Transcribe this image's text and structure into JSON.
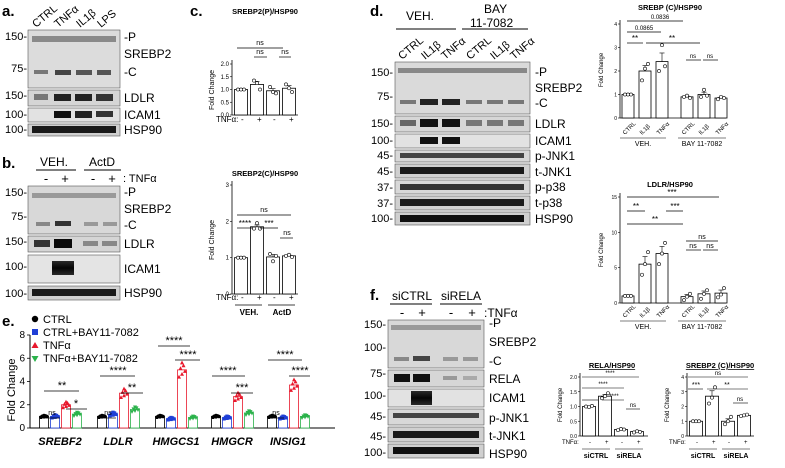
{
  "panels": {
    "a": {
      "letter": "a.",
      "lanes": [
        "CTRL",
        "TNFα",
        "IL1β",
        "LPS"
      ],
      "markers": [
        "150-",
        "75-",
        "150-",
        "100-",
        "100-"
      ],
      "labels": [
        "-P",
        "SREBP2",
        "-C",
        "LDLR",
        "ICAM1",
        "HSP90"
      ]
    },
    "b": {
      "letter": "b.",
      "groups": [
        "VEH.",
        "ActD"
      ],
      "signs": [
        "-",
        "+",
        "-",
        "+"
      ],
      "tnf_label": ": TNFα",
      "markers": [
        "150-",
        "75-",
        "150-",
        "100-",
        "100-"
      ],
      "labels": [
        "-P",
        "SREBP2",
        "-C",
        "LDLR",
        "ICAM1",
        "HSP90"
      ]
    },
    "c": {
      "letter": "c.",
      "xrow_label": "TNFα:",
      "signs": [
        "-",
        "+",
        "-",
        "+"
      ],
      "groups": [
        "VEH.",
        "ActD"
      ],
      "sig_top": [
        "ns",
        "ns",
        "ns"
      ],
      "sig_bottom": [
        "ns",
        "****",
        "***",
        "ns"
      ]
    },
    "d": {
      "letter": "d.",
      "groups": [
        "VEH.",
        "BAY",
        "11-7082"
      ],
      "lanes": [
        "CTRL",
        "IL1β",
        "TNFα",
        "CTRL",
        "IL1β",
        "TNFα"
      ],
      "markers": [
        "150-",
        "75-",
        "150-",
        "100-",
        "45-",
        "45-",
        "37-",
        "37-",
        "100-"
      ],
      "labels": [
        "-P",
        "SREBP2",
        "-C",
        "LDLR",
        "ICAM1",
        "p-JNK1",
        "t-JNK1",
        "p-p38",
        "t-p38",
        "HSP90"
      ],
      "sig_top": [
        "0.0836",
        "0.0865",
        "**",
        "**",
        "ns",
        "ns"
      ],
      "sig_bottom": [
        "***",
        "**",
        "***",
        "**",
        "ns",
        "ns",
        "ns"
      ],
      "xcats": [
        "CTRL",
        "IL1β",
        "TNFα",
        "CTRL",
        "IL1β",
        "TNFα"
      ],
      "xgroups": [
        "VEH.",
        "BAY 11-7082"
      ]
    },
    "e": {
      "letter": "e.",
      "legend": [
        "CTRL",
        "CTRL+BAY11-7082",
        "TNFα",
        "TNFα+BAY11-7082"
      ],
      "sig": [
        "ns",
        "**",
        "*",
        "ns",
        "****",
        "**",
        "****",
        "****",
        "****",
        "***",
        "ns",
        "****",
        "****"
      ]
    },
    "f": {
      "letter": "f.",
      "groups": [
        "siCTRL",
        "siRELA"
      ],
      "signs": [
        "-",
        "+",
        "-",
        "+"
      ],
      "tnf_label": ":TNFα",
      "markers": [
        "150-",
        "100-",
        "75-",
        "100-",
        "45-",
        "45-",
        "100-"
      ],
      "labels": [
        "-P",
        "SREBP2",
        "-C",
        "RELA",
        "ICAM1",
        "p-JNK1",
        "t-JNK1",
        "HSP90"
      ],
      "xrow_label": "TNFα:",
      "sig_rela": [
        "****",
        "****",
        "****",
        "ns"
      ],
      "sig_srebp": [
        "***",
        "**",
        "ns",
        "ns"
      ],
      "xgroups": [
        "siCTRL",
        "siRELA"
      ]
    }
  },
  "chart_data": [
    {
      "id": "c-top",
      "type": "bar",
      "title": "SREBP2(P)/HSP90",
      "ylabel": "Fold Change",
      "categories": [
        "VEH. -",
        "VEH. +",
        "ActD -",
        "ActD +"
      ],
      "values": [
        1.0,
        1.2,
        0.95,
        1.05
      ],
      "points": [
        [
          1.0,
          1.0,
          1.0
        ],
        [
          1.35,
          1.25,
          1.0
        ],
        [
          1.1,
          0.9,
          0.85
        ],
        [
          1.2,
          1.05,
          0.9
        ]
      ],
      "yticks": [
        0,
        0.5,
        1.0,
        1.5,
        2.0
      ],
      "ylim": [
        0,
        2.0
      ]
    },
    {
      "id": "c-bottom",
      "type": "bar",
      "title": "SREBP2(C)/HSP90",
      "ylabel": "Fold Change",
      "categories": [
        "VEH. -",
        "VEH. +",
        "ActD -",
        "ActD +"
      ],
      "values": [
        1.0,
        1.85,
        1.02,
        1.05
      ],
      "points": [
        [
          1.0,
          1.0,
          1.0
        ],
        [
          1.8,
          1.95,
          1.8
        ],
        [
          1.1,
          0.9,
          1.05
        ],
        [
          1.05,
          1.08,
          1.02
        ]
      ],
      "yticks": [
        0,
        1,
        2,
        3
      ],
      "ylim": [
        0,
        3
      ]
    },
    {
      "id": "d-top",
      "type": "bar",
      "title": "SREBP (C)/HSP90",
      "ylabel": "Fold Change",
      "categories": [
        "CTRL",
        "IL1β",
        "TNFα",
        "CTRL",
        "IL1β",
        "TNFα"
      ],
      "values": [
        1.0,
        2.0,
        2.4,
        0.9,
        1.0,
        0.85
      ],
      "points": [
        [
          1.0,
          1.0,
          1.0
        ],
        [
          1.6,
          2.1,
          2.3
        ],
        [
          2.0,
          3.1,
          2.2
        ],
        [
          0.9,
          0.95,
          0.85
        ],
        [
          0.9,
          1.2,
          0.95
        ],
        [
          0.8,
          0.9,
          0.85
        ]
      ],
      "yticks": [
        0,
        1,
        2,
        3,
        4
      ],
      "ylim": [
        0,
        4
      ]
    },
    {
      "id": "d-bottom",
      "type": "bar",
      "title": "LDLR/HSP90",
      "ylabel": "Fold Change",
      "categories": [
        "CTRL",
        "IL1β",
        "TNFα",
        "CTRL",
        "IL1β",
        "TNFα"
      ],
      "values": [
        1.0,
        5.5,
        7.0,
        0.9,
        1.3,
        1.4
      ],
      "points": [
        [
          1.0,
          1.0,
          1.0
        ],
        [
          4.0,
          5.5,
          7.2
        ],
        [
          5.5,
          7.0,
          8.5
        ],
        [
          0.4,
          0.9,
          1.3
        ],
        [
          0.6,
          1.3,
          1.8
        ],
        [
          0.8,
          1.2,
          2.1
        ]
      ],
      "yticks": [
        0,
        5,
        10,
        15
      ],
      "ylim": [
        0,
        15
      ]
    },
    {
      "id": "e",
      "type": "scatter",
      "ylabel": "Fold Change",
      "categories": [
        "SREBF2",
        "LDLR",
        "HMGCS1",
        "HMGCR",
        "INSIG1"
      ],
      "series": [
        {
          "name": "CTRL",
          "color": "#000000",
          "values": [
            1.0,
            1.0,
            1.0,
            1.0,
            1.0
          ]
        },
        {
          "name": "CTRL+BAY11-7082",
          "color": "#1f3fd6",
          "values": [
            1.0,
            1.2,
            0.8,
            0.9,
            0.9
          ]
        },
        {
          "name": "TNFα",
          "color": "#e8182c",
          "values": [
            2.0,
            3.0,
            5.0,
            2.7,
            3.7
          ]
        },
        {
          "name": "TNFα+BAY11-7082",
          "color": "#2ab24a",
          "values": [
            1.2,
            1.6,
            0.9,
            1.3,
            1.0
          ]
        }
      ],
      "yticks": [
        0,
        2,
        4,
        6,
        8
      ],
      "ylim": [
        0,
        8
      ]
    },
    {
      "id": "f-rela",
      "type": "bar",
      "title": "RELA/HSP90",
      "ylabel": "Fold Change",
      "categories": [
        "siCTRL -",
        "siCTRL +",
        "siRELA -",
        "siRELA +"
      ],
      "values": [
        1.0,
        1.35,
        0.22,
        0.15
      ],
      "points": [
        [
          1.0,
          0.98,
          1.02
        ],
        [
          1.28,
          1.35,
          1.45
        ],
        [
          0.2,
          0.24,
          0.22
        ],
        [
          0.12,
          0.16,
          0.14
        ]
      ],
      "yticks": [
        0,
        0.5,
        1.0,
        1.5,
        2.0
      ],
      "ylim": [
        0,
        2.0
      ]
    },
    {
      "id": "f-srebp",
      "type": "bar",
      "title": "SREBP2 (C)/HSP90",
      "ylabel": "Fold Change",
      "categories": [
        "siCTRL -",
        "siCTRL +",
        "siRELA -",
        "siRELA +"
      ],
      "values": [
        1.0,
        2.7,
        1.0,
        1.4
      ],
      "points": [
        [
          1.0,
          1.0,
          1.0
        ],
        [
          2.2,
          2.6,
          3.3
        ],
        [
          0.8,
          1.0,
          1.3
        ],
        [
          1.35,
          1.4,
          1.45
        ]
      ],
      "yticks": [
        0,
        1,
        2,
        3,
        4
      ],
      "ylim": [
        0,
        4
      ]
    }
  ]
}
